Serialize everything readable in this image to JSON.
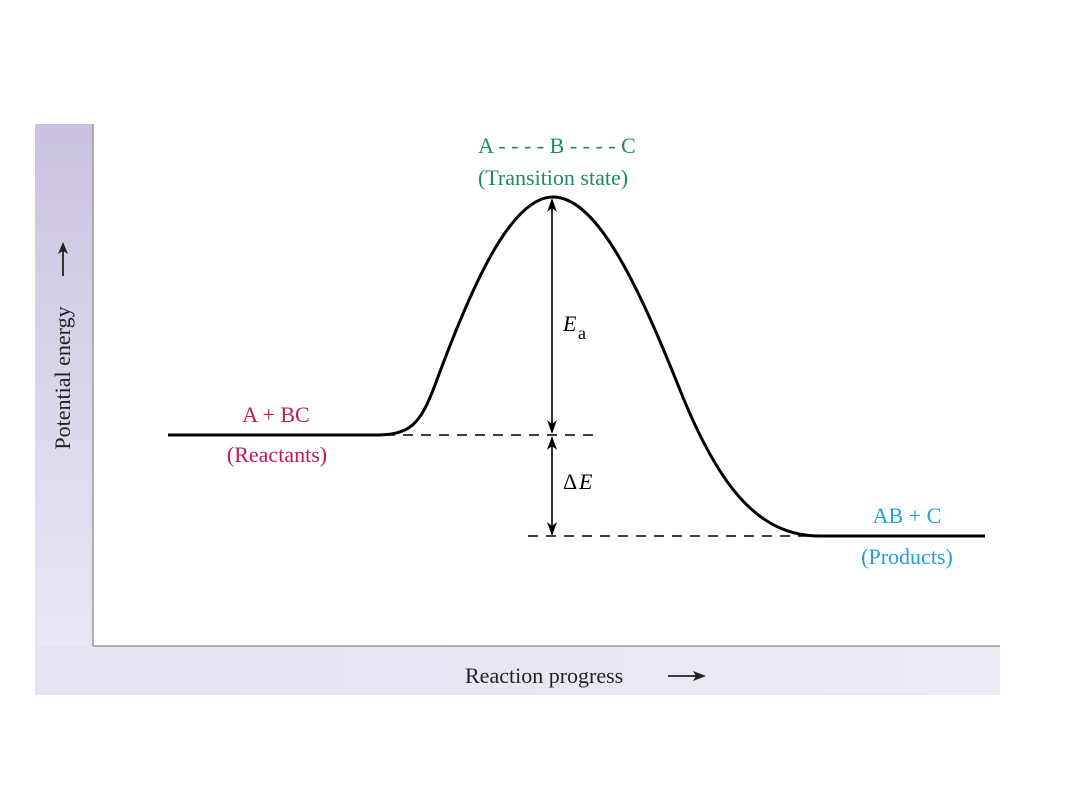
{
  "axes": {
    "y_label": "Potential energy",
    "x_label": "Reaction progress"
  },
  "transition_state": {
    "formula": "A - - - - B - - - - C",
    "caption": "(Transition state)",
    "color": "#1a8a6a"
  },
  "reactants": {
    "formula": "A + BC",
    "caption": "(Reactants)",
    "color": "#c0185a"
  },
  "products": {
    "formula": "AB + C",
    "caption": "(Products)",
    "color": "#1ea0d8"
  },
  "activation_energy": {
    "symbol": "E",
    "subscript": "a"
  },
  "energy_change": {
    "symbol": "E",
    "prefix": "Δ"
  },
  "colors": {
    "panel_gradient_top": "#cfc8e4",
    "panel_gradient_bottom": "#eceaf4",
    "curve": "#000000"
  }
}
